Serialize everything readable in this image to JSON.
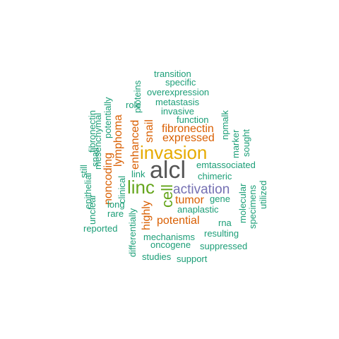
{
  "word_cloud": {
    "words": [
      {
        "text": "transition",
        "color": "#1b9e77"
      },
      {
        "text": "specific",
        "color": "#1b9e77"
      },
      {
        "text": "proteins",
        "color": "#1b9e77"
      },
      {
        "text": "overexpression",
        "color": "#1b9e77"
      },
      {
        "text": "potentially",
        "color": "#1b9e77"
      },
      {
        "text": "metastasis",
        "color": "#1b9e77"
      },
      {
        "text": "role",
        "color": "#1b9e77"
      },
      {
        "text": "invasive",
        "color": "#1b9e77"
      },
      {
        "text": "mesenchymal",
        "color": "#1b9e77"
      },
      {
        "text": "fibronectin",
        "color": "#1b9e77"
      },
      {
        "text": "function",
        "color": "#1b9e77"
      },
      {
        "text": "npmalk",
        "color": "#1b9e77"
      },
      {
        "text": "lymphoma",
        "color": "#d95f02"
      },
      {
        "text": "snail",
        "color": "#d95f02"
      },
      {
        "text": "fibronectin",
        "color": "#d95f02"
      },
      {
        "text": "marker",
        "color": "#1b9e77"
      },
      {
        "text": "sought",
        "color": "#1b9e77"
      },
      {
        "text": "enhanced",
        "color": "#d95f02"
      },
      {
        "text": "expressed",
        "color": "#d95f02"
      },
      {
        "text": "epithelial",
        "color": "#1b9e77"
      },
      {
        "text": "snail",
        "color": "#1b9e77"
      },
      {
        "text": "noncoding",
        "color": "#d95f02"
      },
      {
        "text": "invasion",
        "color": "#e6ab02"
      },
      {
        "text": "still",
        "color": "#1b9e77"
      },
      {
        "text": "emtassociated",
        "color": "#1b9e77"
      },
      {
        "text": "link",
        "color": "#1b9e77"
      },
      {
        "text": "alcl",
        "color": "#555555"
      },
      {
        "text": "unclear",
        "color": "#1b9e77"
      },
      {
        "text": "chimeric",
        "color": "#1b9e77"
      },
      {
        "text": "clinical",
        "color": "#1b9e77"
      },
      {
        "text": "utilized",
        "color": "#1b9e77"
      },
      {
        "text": "specimens",
        "color": "#1b9e77"
      },
      {
        "text": "linc",
        "color": "#66a61e"
      },
      {
        "text": "activation",
        "color": "#7570b3"
      },
      {
        "text": "cell",
        "color": "#66a61e"
      },
      {
        "text": "tumor",
        "color": "#d95f02"
      },
      {
        "text": "gene",
        "color": "#1b9e77"
      },
      {
        "text": "long",
        "color": "#1b9e77"
      },
      {
        "text": "molecular",
        "color": "#1b9e77"
      },
      {
        "text": "anaplastic",
        "color": "#1b9e77"
      },
      {
        "text": "rare",
        "color": "#1b9e77"
      },
      {
        "text": "highly",
        "color": "#d95f02"
      },
      {
        "text": "potential",
        "color": "#d95f02"
      },
      {
        "text": "rna",
        "color": "#1b9e77"
      },
      {
        "text": "reported",
        "color": "#1b9e77"
      },
      {
        "text": "differentially",
        "color": "#1b9e77"
      },
      {
        "text": "resulting",
        "color": "#1b9e77"
      },
      {
        "text": "mechanisms",
        "color": "#1b9e77"
      },
      {
        "text": "oncogene",
        "color": "#1b9e77"
      },
      {
        "text": "suppressed",
        "color": "#1b9e77"
      },
      {
        "text": "studies",
        "color": "#1b9e77"
      },
      {
        "text": "support",
        "color": "#1b9e77"
      }
    ]
  }
}
